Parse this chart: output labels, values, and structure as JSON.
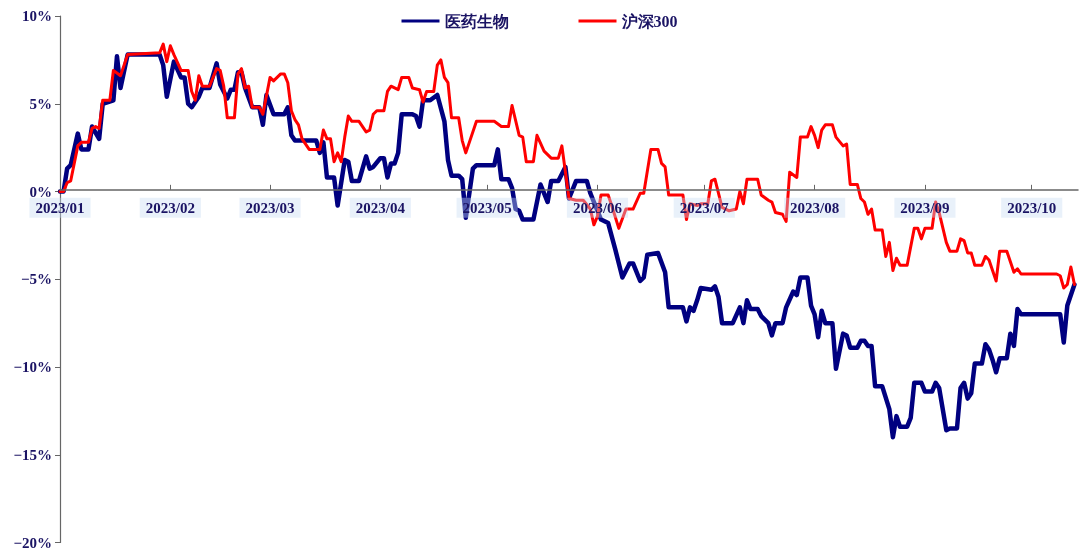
{
  "chart_data": {
    "type": "line",
    "xlim": [
      "2023-01-01",
      "2023-10-14"
    ],
    "xticks": [
      {
        "value": "2023-01-01",
        "label": "2023/01"
      },
      {
        "value": "2023-02-01",
        "label": "2023/02"
      },
      {
        "value": "2023-03-01",
        "label": "2023/03"
      },
      {
        "value": "2023-04-01",
        "label": "2023/04"
      },
      {
        "value": "2023-05-01",
        "label": "2023/05"
      },
      {
        "value": "2023-06-01",
        "label": "2023/06"
      },
      {
        "value": "2023-07-01",
        "label": "2023/07"
      },
      {
        "value": "2023-08-01",
        "label": "2023/08"
      },
      {
        "value": "2023-09-01",
        "label": "2023/09"
      },
      {
        "value": "2023-10-01",
        "label": "2023/10"
      }
    ],
    "ylim": [
      -20,
      10
    ],
    "yticks": [
      {
        "value": -20,
        "label": "−20%"
      },
      {
        "value": -15,
        "label": "−15%"
      },
      {
        "value": -10,
        "label": "−10%"
      },
      {
        "value": -5,
        "label": "−5%"
      },
      {
        "value": 0,
        "label": "0%"
      },
      {
        "value": 5,
        "label": "5%"
      },
      {
        "value": 10,
        "label": "10%"
      }
    ],
    "grid": false,
    "legend": "top",
    "marker": "none",
    "line_style": "solid",
    "series": [
      {
        "name": "医药生物",
        "color": "#000080",
        "x": [
          "2023-01-01",
          "2023-01-02",
          "2023-01-03",
          "2023-01-04",
          "2023-01-06",
          "2023-01-07",
          "2023-01-09",
          "2023-01-10",
          "2023-01-12",
          "2023-01-13",
          "2023-01-16",
          "2023-01-17",
          "2023-01-18",
          "2023-01-20",
          "2023-01-21",
          "2023-01-29",
          "2023-01-30",
          "2023-01-31",
          "2023-02-02",
          "2023-02-04",
          "2023-02-05",
          "2023-02-06",
          "2023-02-07",
          "2023-02-09",
          "2023-02-10",
          "2023-02-12",
          "2023-02-14",
          "2023-02-15",
          "2023-02-17",
          "2023-02-18",
          "2023-02-19",
          "2023-02-20",
          "2023-02-21",
          "2023-02-22",
          "2023-02-24",
          "2023-02-26",
          "2023-02-27",
          "2023-02-28",
          "2023-03-02",
          "2023-03-05",
          "2023-03-06",
          "2023-03-07",
          "2023-03-08",
          "2023-03-14",
          "2023-03-15",
          "2023-03-16",
          "2023-03-17",
          "2023-03-19",
          "2023-03-20",
          "2023-03-22",
          "2023-03-23",
          "2023-03-24",
          "2023-03-26",
          "2023-03-28",
          "2023-03-29",
          "2023-03-30",
          "2023-04-01",
          "2023-04-02",
          "2023-04-03",
          "2023-04-04",
          "2023-04-05",
          "2023-04-06",
          "2023-04-07",
          "2023-04-10",
          "2023-04-11",
          "2023-04-12",
          "2023-04-13",
          "2023-04-15",
          "2023-04-17",
          "2023-04-19",
          "2023-04-20",
          "2023-04-21",
          "2023-04-23",
          "2023-04-24",
          "2023-04-25",
          "2023-04-27",
          "2023-04-28",
          "2023-05-03",
          "2023-05-04",
          "2023-05-05",
          "2023-05-07",
          "2023-05-08",
          "2023-05-09",
          "2023-05-10",
          "2023-05-11",
          "2023-05-14",
          "2023-05-16",
          "2023-05-18",
          "2023-05-19",
          "2023-05-21",
          "2023-05-23",
          "2023-05-24",
          "2023-05-26",
          "2023-05-29",
          "2023-05-30",
          "2023-06-02",
          "2023-06-04",
          "2023-06-06",
          "2023-06-08",
          "2023-06-10",
          "2023-06-11",
          "2023-06-13",
          "2023-06-14",
          "2023-06-15",
          "2023-06-18",
          "2023-06-20",
          "2023-06-21",
          "2023-06-25",
          "2023-06-26",
          "2023-06-27",
          "2023-06-28",
          "2023-06-29",
          "2023-06-30",
          "2023-07-03",
          "2023-07-04",
          "2023-07-05",
          "2023-07-06",
          "2023-07-09",
          "2023-07-11",
          "2023-07-12",
          "2023-07-13",
          "2023-07-14",
          "2023-07-16",
          "2023-07-17",
          "2023-07-19",
          "2023-07-20",
          "2023-07-21",
          "2023-07-23",
          "2023-07-24",
          "2023-07-26",
          "2023-07-27",
          "2023-07-28",
          "2023-07-30",
          "2023-07-31",
          "2023-08-01",
          "2023-08-02",
          "2023-08-03",
          "2023-08-04",
          "2023-08-06",
          "2023-08-07",
          "2023-08-09",
          "2023-08-10",
          "2023-08-11",
          "2023-08-13",
          "2023-08-14",
          "2023-08-15",
          "2023-08-16",
          "2023-08-17",
          "2023-08-18",
          "2023-08-20",
          "2023-08-22",
          "2023-08-23",
          "2023-08-24",
          "2023-08-25",
          "2023-08-27",
          "2023-08-28",
          "2023-08-29",
          "2023-08-31",
          "2023-09-01",
          "2023-09-03",
          "2023-09-04",
          "2023-09-05",
          "2023-09-07",
          "2023-09-08",
          "2023-09-10",
          "2023-09-11",
          "2023-09-12",
          "2023-09-13",
          "2023-09-14",
          "2023-09-15",
          "2023-09-17",
          "2023-09-18",
          "2023-09-19",
          "2023-09-20",
          "2023-09-21",
          "2023-09-22",
          "2023-09-24",
          "2023-09-25",
          "2023-09-26",
          "2023-09-27",
          "2023-09-28",
          "2023-10-09",
          "2023-10-10",
          "2023-10-11",
          "2023-10-13"
        ],
        "values": [
          0,
          0,
          1.3,
          1.5,
          3.3,
          2.4,
          2.4,
          3.7,
          3.0,
          5.0,
          5.2,
          7.7,
          5.9,
          7.8,
          7.8,
          7.8,
          7.2,
          5.4,
          7.4,
          6.5,
          6.5,
          5.0,
          4.8,
          5.4,
          5.9,
          5.9,
          7.3,
          6.1,
          5.3,
          5.8,
          5.8,
          6.8,
          6.8,
          5.9,
          4.8,
          4.8,
          3.8,
          5.5,
          4.4,
          4.4,
          4.8,
          3.2,
          2.9,
          2.9,
          2.2,
          2.8,
          0.8,
          0.8,
          -0.8,
          1.8,
          1.7,
          0.6,
          0.6,
          2.0,
          1.3,
          1.4,
          1.9,
          1.9,
          0.8,
          1.6,
          1.6,
          2.2,
          4.4,
          4.4,
          4.3,
          3.7,
          5.2,
          5.2,
          5.5,
          4.0,
          1.8,
          0.9,
          0.9,
          0.7,
          -1.5,
          1.3,
          1.5,
          1.5,
          2.4,
          0.7,
          0.7,
          0.2,
          -1.0,
          -1.1,
          -1.6,
          -1.6,
          0.4,
          -0.6,
          0.6,
          0.6,
          1.4,
          -0.4,
          0.6,
          0.6,
          -0.1,
          -1.6,
          -1.8,
          -3.3,
          -4.9,
          -4.1,
          -4.1,
          -5.1,
          -4.9,
          -3.6,
          -3.5,
          -4.6,
          -6.6,
          -6.6,
          -7.4,
          -6.6,
          -6.8,
          -6.2,
          -5.5,
          -5.6,
          -5.4,
          -6.0,
          -7.5,
          -7.5,
          -6.6,
          -7.5,
          -6.2,
          -6.7,
          -6.7,
          -7.1,
          -7.5,
          -8.2,
          -7.5,
          -7.5,
          -6.6,
          -5.7,
          -5.9,
          -4.9,
          -4.9,
          -6.5,
          -7.0,
          -8.3,
          -6.8,
          -7.5,
          -7.5,
          -10.1,
          -8.1,
          -8.2,
          -8.9,
          -8.9,
          -8.5,
          -8.5,
          -8.8,
          -8.8,
          -11.1,
          -11.1,
          -12.4,
          -14.0,
          -12.8,
          -13.4,
          -13.4,
          -12.9,
          -10.9,
          -10.9,
          -11.4,
          -11.4,
          -10.9,
          -11.2,
          -13.6,
          -13.5,
          -13.5,
          -11.2,
          -10.9,
          -11.8,
          -11.5,
          -9.8,
          -9.8,
          -8.7,
          -9.0,
          -9.6,
          -10.3,
          -9.5,
          -9.5,
          -8.1,
          -8.8,
          -6.7,
          -7.0,
          -7.0,
          -8.6,
          -6.5,
          -5.3
        ]
      },
      {
        "name": "沪深300",
        "color": "#ff0000",
        "x": [
          "2023-01-01",
          "2023-01-02",
          "2023-01-03",
          "2023-01-04",
          "2023-01-06",
          "2023-01-07",
          "2023-01-09",
          "2023-01-10",
          "2023-01-11",
          "2023-01-12",
          "2023-01-13",
          "2023-01-15",
          "2023-01-16",
          "2023-01-18",
          "2023-01-20",
          "2023-01-29",
          "2023-01-30",
          "2023-01-31",
          "2023-02-01",
          "2023-02-02",
          "2023-02-04",
          "2023-02-06",
          "2023-02-07",
          "2023-02-08",
          "2023-02-09",
          "2023-02-10",
          "2023-02-12",
          "2023-02-14",
          "2023-02-15",
          "2023-02-16",
          "2023-02-17",
          "2023-02-19",
          "2023-02-20",
          "2023-02-21",
          "2023-02-22",
          "2023-02-23",
          "2023-02-24",
          "2023-02-26",
          "2023-02-27",
          "2023-03-01",
          "2023-03-02",
          "2023-03-04",
          "2023-03-05",
          "2023-03-06",
          "2023-03-07",
          "2023-03-08",
          "2023-03-09",
          "2023-03-10",
          "2023-03-12",
          "2023-03-15",
          "2023-03-16",
          "2023-03-17",
          "2023-03-18",
          "2023-03-19",
          "2023-03-20",
          "2023-03-21",
          "2023-03-22",
          "2023-03-23",
          "2023-03-24",
          "2023-03-26",
          "2023-03-28",
          "2023-03-29",
          "2023-03-30",
          "2023-03-31",
          "2023-04-02",
          "2023-04-03",
          "2023-04-04",
          "2023-04-06",
          "2023-04-07",
          "2023-04-09",
          "2023-04-10",
          "2023-04-12",
          "2023-04-13",
          "2023-04-14",
          "2023-04-16",
          "2023-04-17",
          "2023-04-18",
          "2023-04-19",
          "2023-04-20",
          "2023-04-21",
          "2023-04-23",
          "2023-04-24",
          "2023-04-25",
          "2023-04-26",
          "2023-04-28",
          "2023-05-03",
          "2023-05-05",
          "2023-05-07",
          "2023-05-08",
          "2023-05-10",
          "2023-05-11",
          "2023-05-12",
          "2023-05-14",
          "2023-05-15",
          "2023-05-17",
          "2023-05-18",
          "2023-05-19",
          "2023-05-21",
          "2023-05-22",
          "2023-05-24",
          "2023-05-26",
          "2023-05-28",
          "2023-05-30",
          "2023-05-31",
          "2023-06-01",
          "2023-06-02",
          "2023-06-04",
          "2023-06-05",
          "2023-06-07",
          "2023-06-09",
          "2023-06-11",
          "2023-06-13",
          "2023-06-14",
          "2023-06-16",
          "2023-06-18",
          "2023-06-19",
          "2023-06-20",
          "2023-06-21",
          "2023-06-25",
          "2023-06-26",
          "2023-06-27",
          "2023-06-29",
          "2023-06-30",
          "2023-07-02",
          "2023-07-03",
          "2023-07-04",
          "2023-07-06",
          "2023-07-08",
          "2023-07-10",
          "2023-07-11",
          "2023-07-12",
          "2023-07-13",
          "2023-07-16",
          "2023-07-17",
          "2023-07-19",
          "2023-07-20",
          "2023-07-21",
          "2023-07-23",
          "2023-07-24",
          "2023-07-25",
          "2023-07-27",
          "2023-07-28",
          "2023-07-30",
          "2023-07-31",
          "2023-08-01",
          "2023-08-02",
          "2023-08-03",
          "2023-08-04",
          "2023-08-06",
          "2023-08-07",
          "2023-08-09",
          "2023-08-10",
          "2023-08-11",
          "2023-08-13",
          "2023-08-14",
          "2023-08-15",
          "2023-08-16",
          "2023-08-17",
          "2023-08-18",
          "2023-08-20",
          "2023-08-21",
          "2023-08-22",
          "2023-08-23",
          "2023-08-24",
          "2023-08-25",
          "2023-08-27",
          "2023-08-29",
          "2023-08-30",
          "2023-08-31",
          "2023-09-01",
          "2023-09-03",
          "2023-09-04",
          "2023-09-05",
          "2023-09-07",
          "2023-09-08",
          "2023-09-10",
          "2023-09-11",
          "2023-09-12",
          "2023-09-13",
          "2023-09-14",
          "2023-09-15",
          "2023-09-17",
          "2023-09-18",
          "2023-09-19",
          "2023-09-21",
          "2023-09-22",
          "2023-09-24",
          "2023-09-26",
          "2023-09-27",
          "2023-09-28",
          "2023-10-08",
          "2023-10-09",
          "2023-10-10",
          "2023-10-11",
          "2023-10-12",
          "2023-10-13"
        ],
        "values": [
          0,
          0,
          0.5,
          0.6,
          2.6,
          2.8,
          2.8,
          3.6,
          3.7,
          3.6,
          5.2,
          5.2,
          6.9,
          6.6,
          7.8,
          7.9,
          8.4,
          7.4,
          8.3,
          7.8,
          6.9,
          6.9,
          5.7,
          5.2,
          6.6,
          6.0,
          6.0,
          7.0,
          6.9,
          6.0,
          4.2,
          4.2,
          6.7,
          7.0,
          5.9,
          6.0,
          4.8,
          4.8,
          4.4,
          6.5,
          6.3,
          6.7,
          6.7,
          6.2,
          4.6,
          4.1,
          3.8,
          3.0,
          2.4,
          2.4,
          3.5,
          3.0,
          3.0,
          1.7,
          2.2,
          1.7,
          3.1,
          4.3,
          4.0,
          4.0,
          3.4,
          3.5,
          4.4,
          4.6,
          4.6,
          5.7,
          6.0,
          5.8,
          6.5,
          6.5,
          5.9,
          5.8,
          5.1,
          5.7,
          5.7,
          7.2,
          7.5,
          6.5,
          6.2,
          4.2,
          4.2,
          2.9,
          2.2,
          2.8,
          4.0,
          4.0,
          3.7,
          3.7,
          4.9,
          3.2,
          3.1,
          1.7,
          1.7,
          3.2,
          2.3,
          2.1,
          1.9,
          1.9,
          2.6,
          -0.4,
          -0.5,
          -0.5,
          -1.0,
          -1.9,
          -1.4,
          -0.2,
          -0.2,
          -0.8,
          -2.1,
          -1.0,
          -1.0,
          -0.1,
          -0.1,
          2.4,
          2.4,
          1.6,
          1.4,
          -0.2,
          -0.2,
          -1.6,
          -0.7,
          -0.8,
          -0.7,
          -0.7,
          0.6,
          0.7,
          -0.9,
          -1.1,
          -1.0,
          0.0,
          -0.7,
          0.7,
          0.7,
          -0.2,
          -0.5,
          -0.6,
          -1.2,
          -1.3,
          -1.7,
          1.1,
          0.8,
          3.1,
          3.1,
          3.7,
          3.2,
          2.5,
          3.5,
          3.8,
          3.8,
          3.1,
          2.6,
          2.7,
          0.4,
          0.4,
          -0.4,
          -0.6,
          -1.3,
          -1.0,
          -2.2,
          -2.2,
          -3.7,
          -2.9,
          -4.5,
          -3.8,
          -4.2,
          -4.2,
          -2.1,
          -2.1,
          -2.7,
          -2.1,
          -2.1,
          -0.6,
          -1.2,
          -2.9,
          -3.4,
          -3.4,
          -2.7,
          -2.8,
          -3.5,
          -3.5,
          -4.2,
          -4.2,
          -3.7,
          -3.9,
          -5.1,
          -3.4,
          -3.4,
          -4.6,
          -4.4,
          -4.7,
          -4.7,
          -4.8,
          -5.5,
          -5.3,
          -4.3,
          -5.3
        ]
      }
    ]
  }
}
